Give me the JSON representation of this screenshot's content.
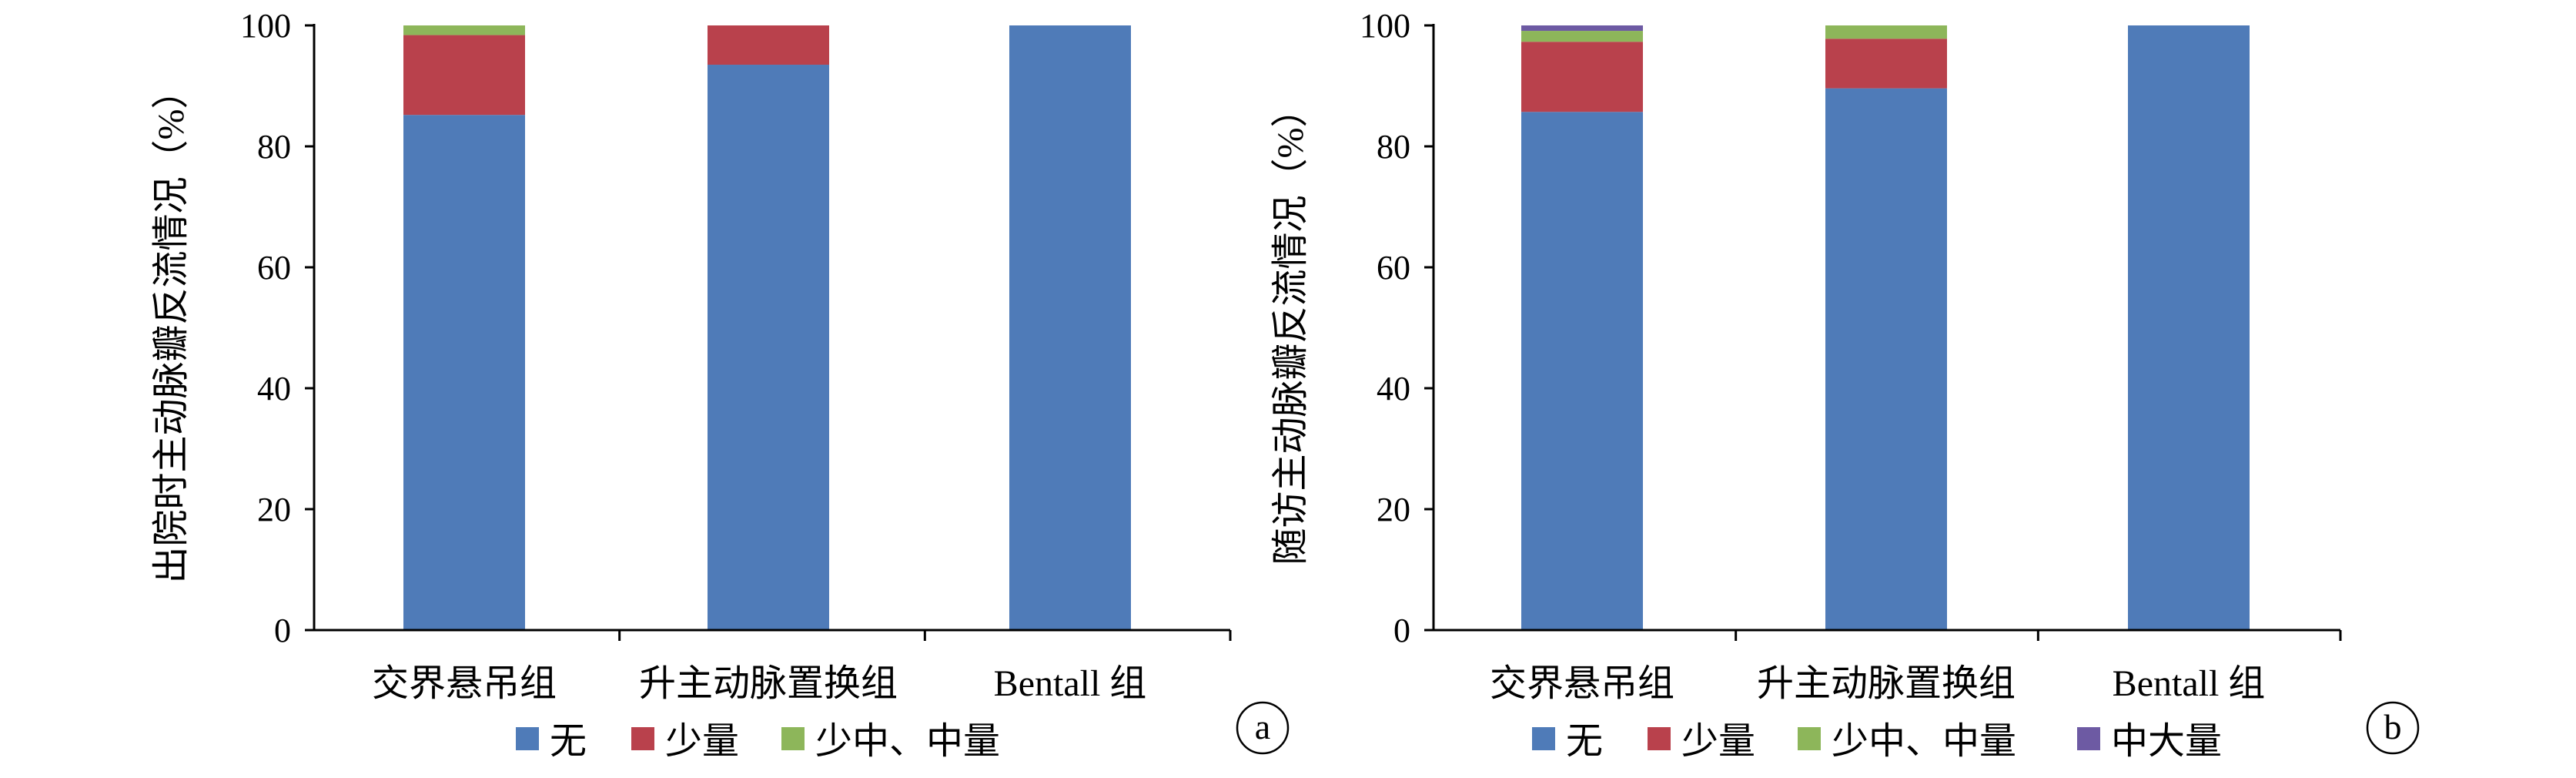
{
  "chart_data": [
    {
      "type": "bar",
      "stacked": true,
      "panel_label": "a",
      "ylabel": "出院时主动脉瓣反流情况（%）",
      "ylim": [
        0,
        100
      ],
      "yticks": [
        0,
        20,
        40,
        60,
        80,
        100
      ],
      "categories": [
        "交界悬吊组",
        "升主动脉置换组",
        "Bentall 组"
      ],
      "legend_position": "bottom",
      "series": [
        {
          "name": "无",
          "color": "#4F7BB8",
          "values": [
            85.2,
            93.5,
            100
          ]
        },
        {
          "name": "少量",
          "color": "#B9414C",
          "values": [
            13.2,
            6.5,
            0
          ]
        },
        {
          "name": "少中、中量",
          "color": "#8DB65A",
          "values": [
            1.6,
            0,
            0
          ]
        }
      ]
    },
    {
      "type": "bar",
      "stacked": true,
      "panel_label": "b",
      "ylabel": "随访主动脉瓣反流情况（%）",
      "ylim": [
        0,
        100
      ],
      "yticks": [
        0,
        20,
        40,
        60,
        80,
        100
      ],
      "categories": [
        "交界悬吊组",
        "升主动脉置换组",
        "Bentall 组"
      ],
      "legend_position": "bottom",
      "series": [
        {
          "name": "无",
          "color": "#4F7BB8",
          "values": [
            85.7,
            89.6,
            100
          ]
        },
        {
          "name": "少量",
          "color": "#B9414C",
          "values": [
            11.6,
            8.2,
            0
          ]
        },
        {
          "name": "少中、中量",
          "color": "#8DB65A",
          "values": [
            1.8,
            2.2,
            0
          ]
        },
        {
          "name": "中大量",
          "color": "#6D5AA3",
          "values": [
            0.9,
            0,
            0
          ]
        }
      ]
    }
  ]
}
